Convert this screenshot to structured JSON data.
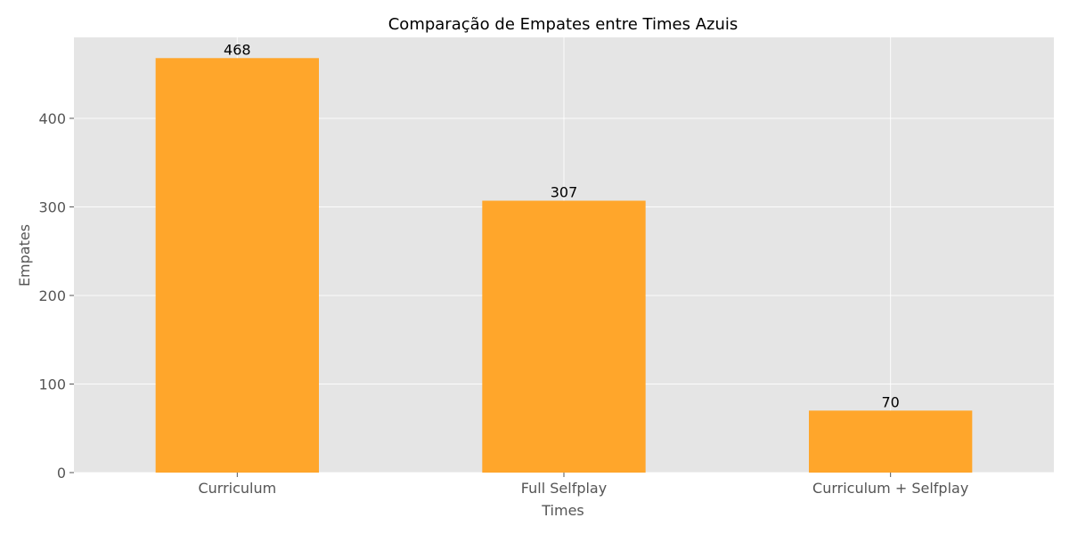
{
  "chart_data": {
    "type": "bar",
    "title": "Comparação de Empates entre Times Azuis",
    "xlabel": "Times",
    "ylabel": "Empates",
    "categories": [
      "Curriculum",
      "Full Selfplay",
      "Curriculum + Selfplay"
    ],
    "values": [
      468,
      307,
      70
    ],
    "value_labels": [
      "468",
      "307",
      "70"
    ],
    "yticks": [
      0,
      100,
      200,
      300,
      400
    ],
    "ytick_labels": [
      "0",
      "100",
      "200",
      "300",
      "400"
    ],
    "ylim": [
      0,
      491.4
    ],
    "grid": true,
    "bar_color": "#FFA62B",
    "background_color": "#E5E5E5"
  }
}
